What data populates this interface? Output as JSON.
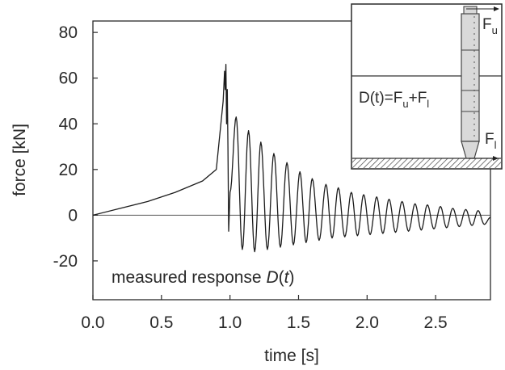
{
  "chart_data": {
    "type": "line",
    "title": "",
    "xlabel": "time [s]",
    "ylabel": "force [kN]",
    "xlim": [
      0.0,
      2.9
    ],
    "ylim": [
      -37,
      85
    ],
    "xticks": [
      "0.0",
      "0.5",
      "1.0",
      "1.5",
      "2.0",
      "2.5"
    ],
    "xtick_values": [
      0.0,
      0.5,
      1.0,
      1.5,
      2.0,
      2.5
    ],
    "yticks": [
      "80",
      "60",
      "40",
      "20",
      "0",
      "-20"
    ],
    "ytick_values": [
      80,
      60,
      40,
      20,
      0,
      -20
    ],
    "zero_line": true,
    "grid": false,
    "annotation": {
      "prefix": "measured response ",
      "symbol": "D",
      "open": "(",
      "arg": "t",
      "close": ")"
    },
    "series": [
      {
        "x": [
          0.0,
          0.2,
          0.4,
          0.6,
          0.8,
          0.9,
          0.93,
          0.95,
          0.96,
          0.965,
          0.97,
          0.975,
          0.98,
          0.985,
          0.99,
          1.0
        ],
        "y": [
          0.0,
          3.0,
          6.0,
          10.0,
          15.0,
          20.0,
          38.0,
          50.0,
          63.0,
          55.0,
          66.0,
          40.0,
          55.0,
          30.0,
          -7.0,
          10.0
        ]
      }
    ],
    "oscillation": {
      "t_start": 1.0,
      "t_end": 2.9,
      "peak_times": [
        1.045,
        1.135,
        1.225,
        1.32,
        1.415,
        1.51,
        1.6,
        1.7,
        1.79,
        1.885,
        1.975,
        2.07,
        2.16,
        2.255,
        2.35,
        2.44,
        2.535,
        2.625,
        2.72,
        2.81
      ],
      "peaks": [
        43,
        37,
        32,
        27,
        23,
        19,
        16,
        13.5,
        12,
        10,
        9,
        8,
        7,
        6,
        5,
        4.5,
        3.8,
        3,
        2.5,
        2
      ],
      "troughs": [
        -15,
        -16,
        -15,
        -14,
        -13,
        -12,
        -11,
        -10,
        -9.5,
        -9,
        -8.5,
        -8,
        -7.5,
        -7,
        -6.5,
        -6,
        -5.5,
        -5,
        -4.5,
        -4
      ]
    },
    "inset": {
      "top_force": "F",
      "top_force_sub": "u",
      "bottom_force": "F",
      "bottom_force_sub": "l",
      "equation_prefix": "D(t)=F",
      "equation_mid_sub": "u",
      "equation_plus": "+F",
      "equation_end_sub": "l"
    }
  }
}
